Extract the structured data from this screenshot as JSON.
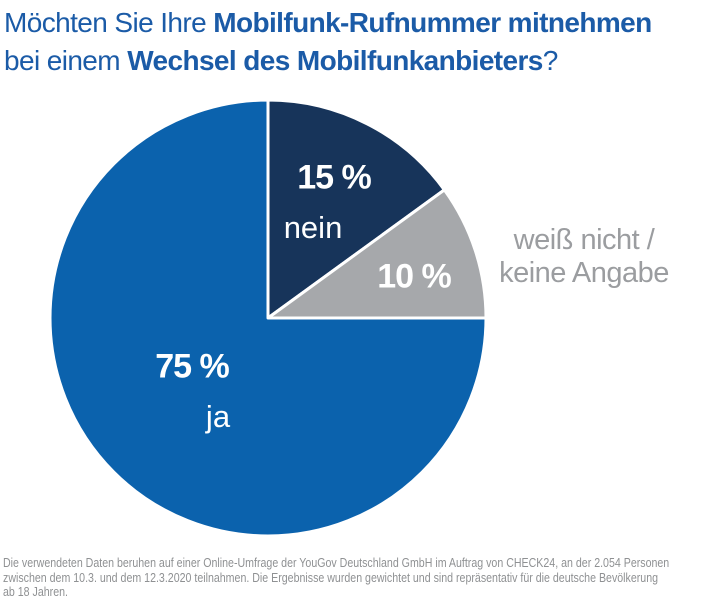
{
  "title": {
    "line1_regular": "Möchten Sie Ihre ",
    "line1_bold": "Mobilfunk-Rufnummer mitnehmen",
    "line2_regular": "bei einem ",
    "line2_bold": "Wechsel des Mobilfunkanbieters",
    "line2_suffix": "?"
  },
  "chart_data": {
    "type": "pie",
    "title": "Möchten Sie Ihre Mobilfunk-Rufnummer mitnehmen bei einem Wechsel des Mobilfunkanbieters?",
    "unit": "%",
    "start_angle_deg": -90,
    "direction": "clockwise",
    "legend_position": "labels-on-slices",
    "slices": [
      {
        "key": "nein",
        "label": "nein",
        "value": 15,
        "display": "15 %",
        "color": "#17345A"
      },
      {
        "key": "weiss-nicht",
        "label": "weiß nicht / keine Angabe",
        "value": 10,
        "display": "10 %",
        "color": "#A6A8AB"
      },
      {
        "key": "ja",
        "label": "ja",
        "value": 75,
        "display": "75 %",
        "color": "#0B62AD"
      }
    ]
  },
  "outside_label": {
    "line1": "weiß nicht /",
    "line2": "keine Angabe"
  },
  "footer": {
    "lines": [
      "Die verwendeten Daten beruhen auf einer Online-Umfrage der YouGov Deutschland GmbH im Auftrag von CHECK24, an der 2.054 Personen",
      "zwischen dem 10.3. und dem 12.3.2020 teilnahmen. Die Ergebnisse wurden gewichtet und sind repräsentativ für die deutsche Bevölkerung",
      "ab 18 Jahren."
    ]
  },
  "colors": {
    "title": "#1B5BA7",
    "slice_ja": "#0B62AD",
    "slice_nein": "#17345A",
    "slice_weiss_nicht": "#A6A8AB",
    "outside_label": "#9B9DA0",
    "footer": "#8F9193",
    "background": "#FFFFFF",
    "slice_divider": "#FFFFFF"
  }
}
